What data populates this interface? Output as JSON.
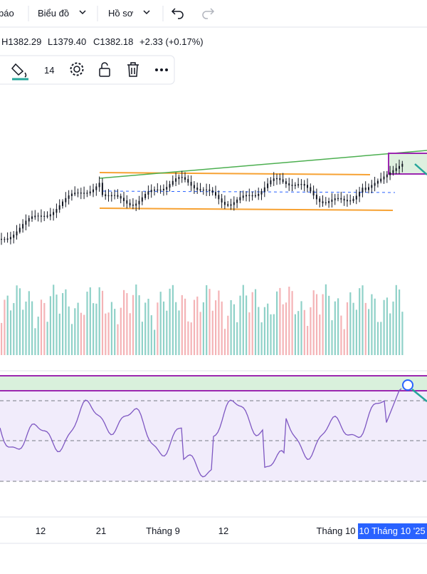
{
  "toolbar": {
    "items": [
      "báo",
      "Biểu đồ",
      "Hồ sơ"
    ]
  },
  "ohlc": {
    "high": "H1382.29",
    "low": "L1379.40",
    "close": "C1382.18",
    "change": "+2.33 (+0.17%)"
  },
  "drawing_toolbar": {
    "width": "14"
  },
  "x_axis": {
    "labels": [
      "12",
      "21",
      "Tháng 9",
      "12",
      "Tháng 10"
    ],
    "crosshair_label": "10 Tháng 10 '25"
  }
}
